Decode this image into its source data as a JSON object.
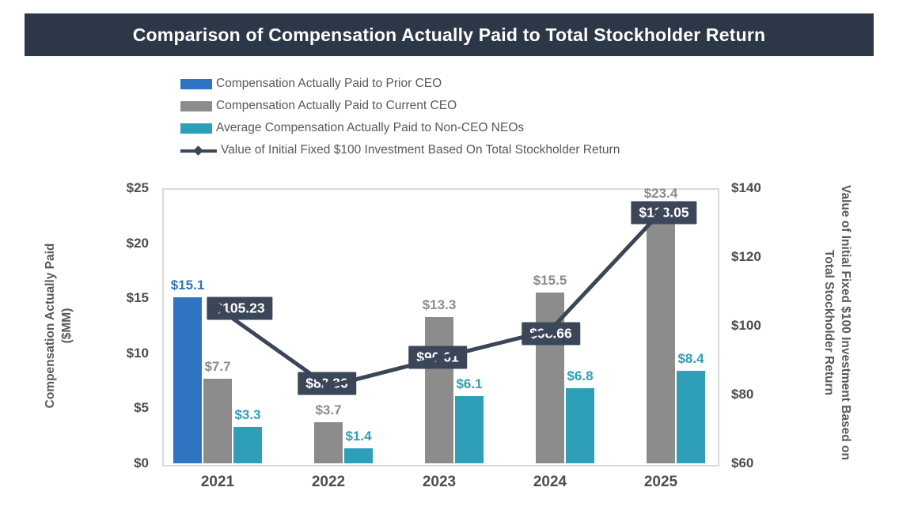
{
  "header": {
    "title": "Comparison of Compensation Actually Paid to Total Stockholder Return"
  },
  "legend": {
    "items": [
      {
        "label": "Compensation Actually Paid to Prior CEO",
        "marker": "rect",
        "color": "#2E74C3"
      },
      {
        "label": "Compensation Actually Paid to Current CEO",
        "marker": "rect",
        "color": "#8C8C8C"
      },
      {
        "label": "Average Compensation Actually Paid to Non-CEO NEOs",
        "marker": "rect",
        "color": "#2D9FB8"
      },
      {
        "label": "Value of Initial Fixed $100 Investment Based On Total Stockholder Return",
        "marker": "line-diamond",
        "color": "#3B4759"
      }
    ]
  },
  "chart_data": {
    "type": "combo-bar-line",
    "title": "Comparison of Compensation Actually Paid to Total Stockholder Return",
    "categories": [
      "2021",
      "2022",
      "2023",
      "2024",
      "2025"
    ],
    "bar_series": [
      {
        "name": "Compensation Actually Paid to Prior CEO",
        "color": "#2E74C3",
        "values": [
          15.1,
          null,
          null,
          null,
          null
        ],
        "labels": [
          "$15.1",
          "",
          "",
          "",
          ""
        ]
      },
      {
        "name": "Compensation Actually Paid to Current CEO",
        "color": "#8C8C8C",
        "values": [
          7.7,
          3.7,
          13.3,
          15.5,
          23.4
        ],
        "labels": [
          "$7.7",
          "$3.7",
          "$13.3",
          "$15.5",
          "$23.4"
        ]
      },
      {
        "name": "Average Compensation Actually Paid to Non-CEO NEOs",
        "color": "#2D9FB8",
        "values": [
          3.3,
          1.4,
          6.1,
          6.8,
          8.4
        ],
        "labels": [
          "$3.3",
          "$1.4",
          "$6.1",
          "$6.8",
          "$8.4"
        ]
      }
    ],
    "line_series": {
      "name": "Value of Initial Fixed $100 Investment Based On Total Stockholder Return",
      "color": "#3B4759",
      "axis": "right",
      "values": [
        105.23,
        82.36,
        90.61,
        98.66,
        133.05
      ],
      "labels": [
        "$105.23",
        "$82.36",
        "$90.61",
        "$98.66",
        "$133.05"
      ]
    },
    "left_axis": {
      "title_lines": [
        "Compensation Actually Paid",
        "($MM)"
      ],
      "ticks": [
        "$25",
        "$20",
        "$15",
        "$10",
        "$5",
        "$0"
      ],
      "min": 0,
      "max": 25
    },
    "right_axis": {
      "title_lines": [
        "Value of Initial Fixed $100 Investment Based on",
        "Total Stockholder Return"
      ],
      "ticks": [
        "$140",
        "$120",
        "$100",
        "$80",
        "$60"
      ],
      "min": 60,
      "max": 140
    },
    "grid": false,
    "legend_position": "top"
  },
  "colors": {
    "header_bg": "#2C3848",
    "line_label_bg": "#3B4759",
    "axis_text": "#4D4D4D",
    "plot_border": "#D9D9D9"
  }
}
